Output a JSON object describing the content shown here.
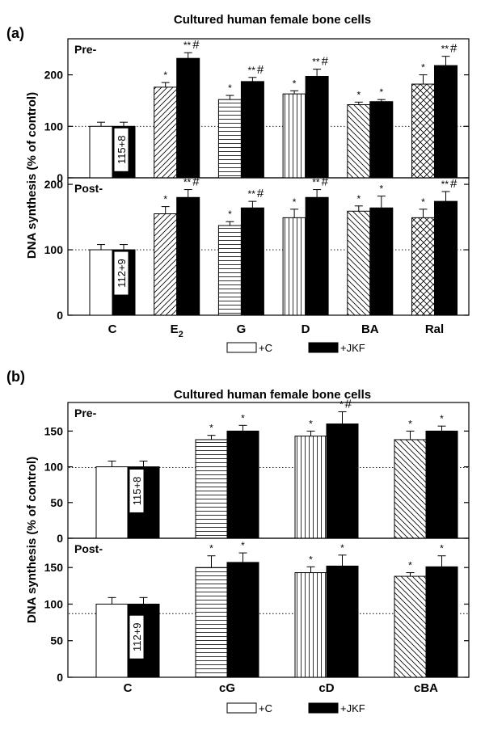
{
  "legend": {
    "c_label": "+C",
    "jkf_label": "+JKF"
  },
  "chart_data": [
    {
      "type": "bar",
      "panel_label": "(a)",
      "title": "Cultured human female bone cells",
      "ylabel": "DNA synthesis (% of control)",
      "categories": [
        "C",
        "E2",
        "G",
        "D",
        "BA",
        "Ral"
      ],
      "category_display": [
        {
          "main": "C",
          "sub": ""
        },
        {
          "main": "E",
          "sub": "2"
        },
        {
          "main": "G",
          "sub": ""
        },
        {
          "main": "D",
          "sub": ""
        },
        {
          "main": "BA",
          "sub": ""
        },
        {
          "main": "Ral",
          "sub": ""
        }
      ],
      "patterns": [
        "none",
        "diag",
        "horiz",
        "vert",
        "back",
        "cross"
      ],
      "subpanels": [
        {
          "name": "Pre-",
          "ylim": [
            0,
            270
          ],
          "yticks": [
            0,
            100,
            200
          ],
          "reference_line": 100,
          "control_box": "115+8",
          "series": [
            {
              "name": "+C",
              "values": [
                100,
                176,
                152,
                163,
                142,
                182
              ],
              "errors": [
                8,
                9,
                8,
                6,
                5,
                18
              ],
              "annotations": [
                "",
                "*",
                "*",
                "*",
                "*",
                "*"
              ]
            },
            {
              "name": "+JKF",
              "values": [
                100,
                232,
                187,
                197,
                148,
                218
              ],
              "errors": [
                8,
                11,
                8,
                14,
                4,
                18
              ],
              "annotations": [
                "",
                "**#",
                "**#",
                "**#",
                "*",
                "**#"
              ]
            }
          ]
        },
        {
          "name": "Post-",
          "ylim": [
            0,
            210
          ],
          "yticks": [
            0,
            100,
            200
          ],
          "reference_line": 100,
          "control_box": "112+9",
          "series": [
            {
              "name": "+C",
              "values": [
                100,
                155,
                137,
                149,
                159,
                149
              ],
              "errors": [
                8,
                11,
                6,
                13,
                8,
                13
              ],
              "annotations": [
                "",
                "*",
                "*",
                "*",
                "*",
                "*"
              ]
            },
            {
              "name": "+JKF",
              "values": [
                100,
                180,
                164,
                180,
                164,
                174
              ],
              "errors": [
                8,
                12,
                10,
                12,
                18,
                15
              ],
              "annotations": [
                "",
                "**#",
                "**#",
                "**#",
                "*",
                "**#"
              ]
            }
          ]
        }
      ]
    },
    {
      "type": "bar",
      "panel_label": "(b)",
      "title": "Cultured human female bone cells",
      "ylabel": "DNA synthesis (% of control)",
      "categories": [
        "C",
        "cG",
        "cD",
        "cBA"
      ],
      "category_display": [
        {
          "main": "C",
          "sub": ""
        },
        {
          "main": "cG",
          "sub": ""
        },
        {
          "main": "cD",
          "sub": ""
        },
        {
          "main": "cBA",
          "sub": ""
        }
      ],
      "patterns": [
        "none",
        "horiz",
        "vert",
        "back"
      ],
      "subpanels": [
        {
          "name": "Pre-",
          "ylim": [
            0,
            190
          ],
          "yticks": [
            0,
            50,
            100,
            150
          ],
          "reference_line": 99,
          "control_box": "115+8",
          "series": [
            {
              "name": "+C",
              "values": [
                100,
                138,
                143,
                138
              ],
              "errors": [
                8,
                6,
                7,
                12
              ],
              "annotations": [
                "",
                "*",
                "*",
                "*"
              ]
            },
            {
              "name": "+JKF",
              "values": [
                100,
                150,
                160,
                150
              ],
              "errors": [
                8,
                8,
                17,
                7
              ],
              "annotations": [
                "",
                "*",
                "*#",
                "*"
              ]
            }
          ]
        },
        {
          "name": "Post-",
          "ylim": [
            0,
            190
          ],
          "yticks": [
            0,
            50,
            100,
            150
          ],
          "reference_line": 87,
          "control_box": "112+9",
          "series": [
            {
              "name": "+C",
              "values": [
                100,
                150,
                143,
                138
              ],
              "errors": [
                9,
                16,
                8,
                5
              ],
              "annotations": [
                "",
                "*",
                "*",
                "*"
              ]
            },
            {
              "name": "+JKF",
              "values": [
                100,
                157,
                152,
                151
              ],
              "errors": [
                9,
                13,
                15,
                15
              ],
              "annotations": [
                "",
                "*",
                "*",
                "*"
              ]
            }
          ]
        }
      ]
    }
  ]
}
